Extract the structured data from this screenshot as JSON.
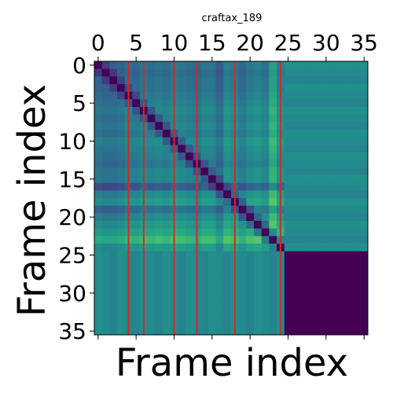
{
  "chart_data": {
    "type": "heatmap",
    "title": "craftax_189",
    "xlabel": "Frame index",
    "ylabel": "Frame index",
    "n": 36,
    "xlim": [
      -0.5,
      35.5
    ],
    "ylim": [
      35.5,
      -0.5
    ],
    "x_ticks": [
      0,
      5,
      10,
      15,
      20,
      25,
      30,
      35
    ],
    "y_ticks": [
      0,
      5,
      10,
      15,
      20,
      25,
      30,
      35
    ],
    "x_axis_position": "top",
    "colormap": "viridis",
    "grid": false,
    "legend": "none",
    "vertical_markers": [
      4,
      6,
      10,
      13,
      18,
      24
    ],
    "marker_color": "#d62728",
    "padding_start": 25,
    "row_profile": [
      0.3,
      0.25,
      0.3,
      0.3,
      0.35,
      0.4,
      0.45,
      0.4,
      0.45,
      0.4,
      0.5,
      0.45,
      0.4,
      0.35,
      0.45,
      0.45,
      0.15,
      0.5,
      0.6,
      0.3,
      0.5,
      0.6,
      0.7,
      0.85,
      0.6
    ],
    "col_profile": [
      0.35,
      0.3,
      0.3,
      0.35,
      0.45,
      0.4,
      0.5,
      0.45,
      0.5,
      0.45,
      0.55,
      0.5,
      0.45,
      0.4,
      0.5,
      0.5,
      0.3,
      0.6,
      0.55,
      0.4,
      0.55,
      0.6,
      0.5,
      0.9,
      0.6
    ],
    "padding_row_value": 0.5,
    "padding_corner_value": 0.0,
    "diagonal_value": 0.0
  }
}
